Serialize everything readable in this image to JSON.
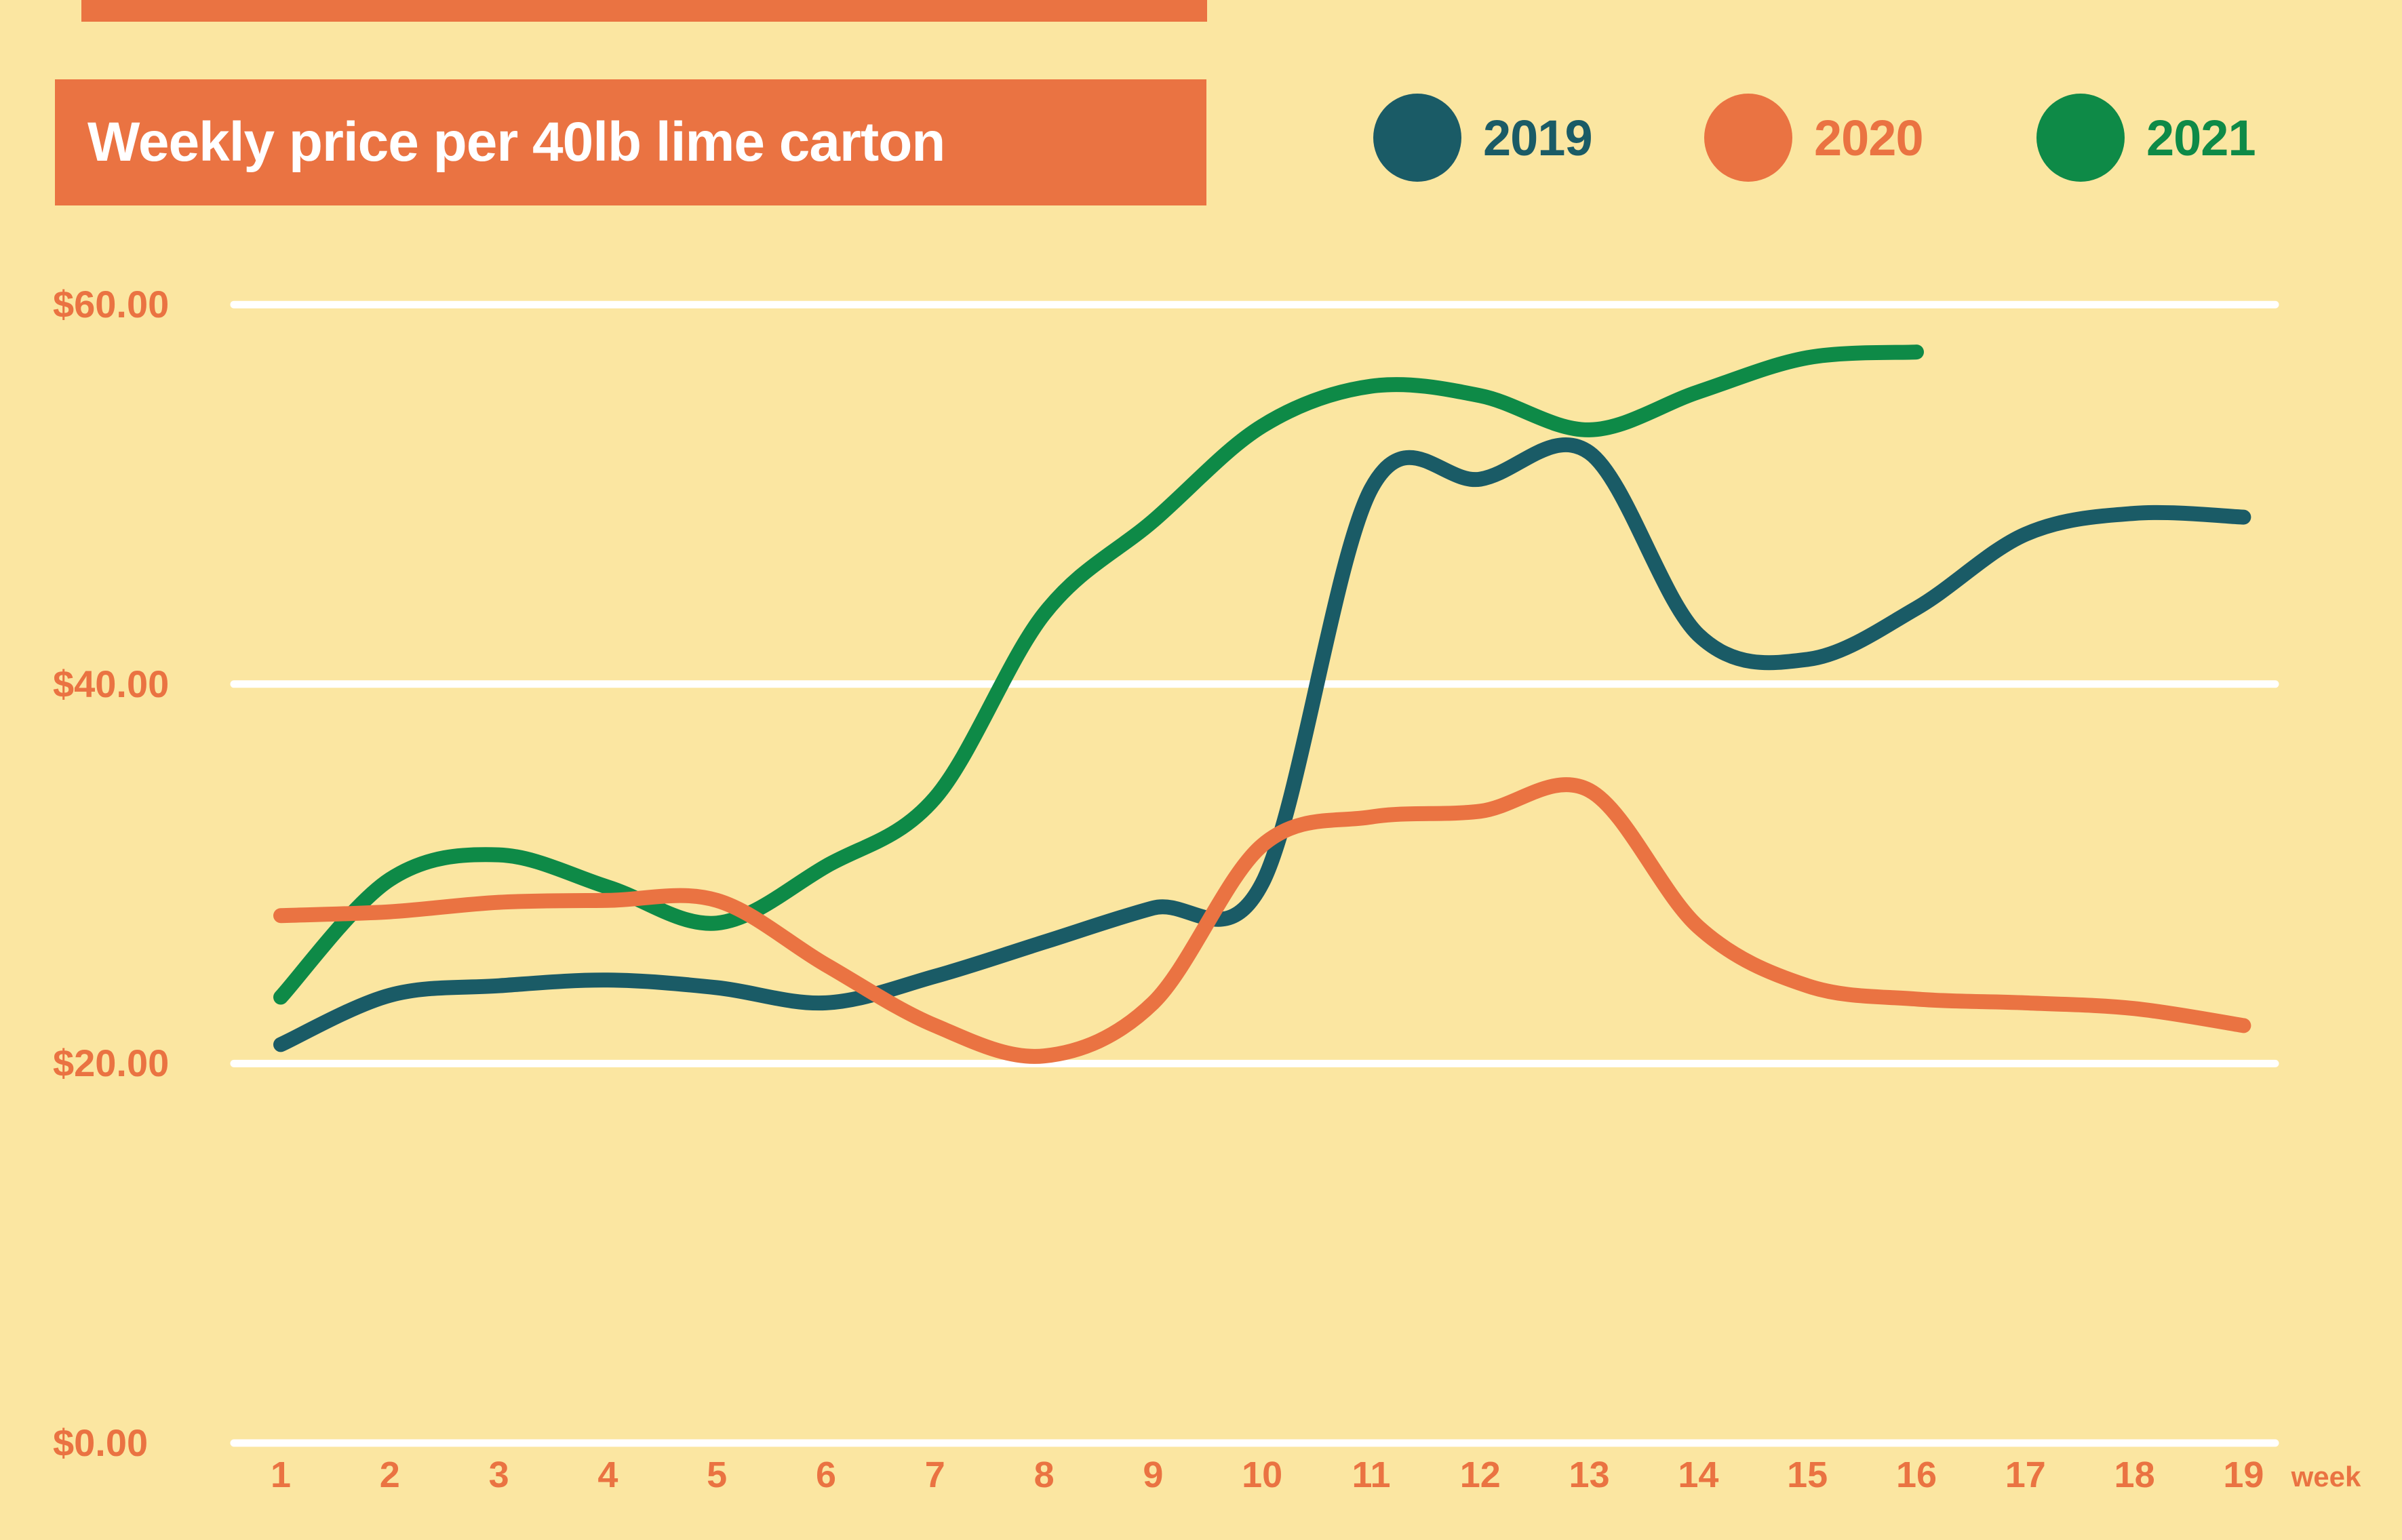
{
  "title": "Weekly price per 40lb lime carton",
  "legend": {
    "items": [
      {
        "label": "2019",
        "color": "#1A5B66"
      },
      {
        "label": "2020",
        "color": "#EA7342"
      },
      {
        "label": "2021",
        "color": "#0E8A47"
      }
    ]
  },
  "colors": {
    "background": "#FBE6A1",
    "accent_orange": "#EA7342",
    "teal": "#1A5B66",
    "green": "#0E8A47",
    "gridline": "#FFFFFF",
    "title_text": "#FFFFFF"
  },
  "chart_data": {
    "type": "line",
    "title": "Weekly price per 40lb lime carton",
    "xlabel": "week",
    "ylabel": "",
    "ylim": [
      0,
      63
    ],
    "grid": "horizontal white gridlines at $0, $20, $40, $60",
    "legend_position": "top-right",
    "x": [
      1,
      2,
      3,
      4,
      5,
      6,
      7,
      8,
      9,
      10,
      11,
      12,
      13,
      14,
      15,
      16,
      17,
      18,
      19
    ],
    "x_labels": [
      "1",
      "2",
      "3",
      "4",
      "5",
      "6",
      "7",
      "8",
      "9",
      "10",
      "11",
      "12",
      "13",
      "14",
      "15",
      "16",
      "17",
      "18",
      "19"
    ],
    "x_axis_caption": "week",
    "y_ticks": [
      {
        "label": "$60.00",
        "value": 60
      },
      {
        "label": "$40.00",
        "value": 40
      },
      {
        "label": "$20.00",
        "value": 20
      },
      {
        "label": "$0.00",
        "value": 0
      }
    ],
    "series": [
      {
        "name": "2019",
        "color": "#1A5B66",
        "values": [
          21.0,
          23.6,
          24.1,
          24.4,
          24.0,
          23.2,
          24.6,
          26.4,
          28.2,
          29.5,
          50.3,
          50.8,
          52.2,
          42.6,
          41.3,
          44.0,
          47.9,
          49.0,
          48.8
        ]
      },
      {
        "name": "2020",
        "color": "#EA7342",
        "values": [
          27.8,
          28.0,
          28.5,
          28.6,
          28.6,
          25.2,
          22.0,
          20.4,
          23.2,
          31.5,
          33.0,
          33.3,
          34.4,
          27.2,
          24.1,
          23.4,
          23.2,
          22.9,
          22.0
        ]
      },
      {
        "name": "2021",
        "color": "#0E8A47",
        "values": [
          23.5,
          29.7,
          31.0,
          29.3,
          27.4,
          30.4,
          34.0,
          43.7,
          48.6,
          53.6,
          55.7,
          55.2,
          53.4,
          55.4,
          57.2,
          57.5
        ]
      }
    ]
  }
}
